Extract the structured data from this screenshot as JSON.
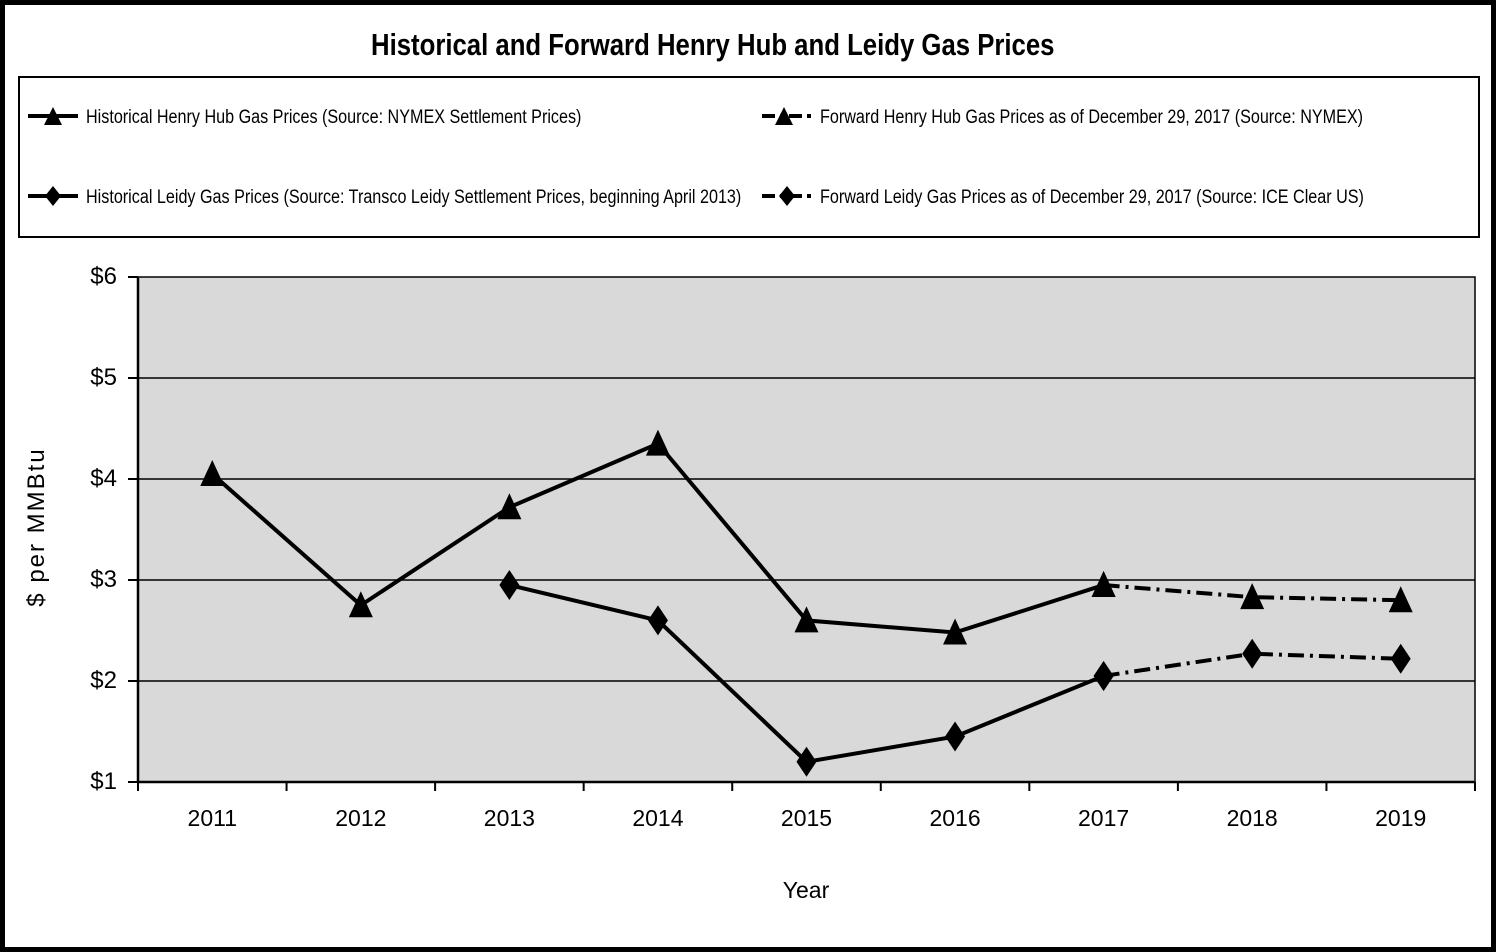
{
  "page": {
    "title": "Historical and Forward Henry Hub and Leidy Gas Prices"
  },
  "legend": {
    "items": [
      {
        "label": "Historical Henry Hub Gas Prices (Source: NYMEX Settlement Prices)",
        "marker": "triangle",
        "line": "solid"
      },
      {
        "label": "Forward Henry Hub Gas Prices as of December 29, 2017 (Source: NYMEX)",
        "marker": "triangle",
        "line": "dash-dot"
      },
      {
        "label": "Historical Leidy Gas Prices (Source: Transco Leidy Settlement Prices, beginning April 2013)",
        "marker": "diamond",
        "line": "solid"
      },
      {
        "label": "Forward Leidy Gas Prices as of December 29, 2017 (Source: ICE Clear US)",
        "marker": "diamond",
        "line": "dash-dot"
      }
    ]
  },
  "chart_data": {
    "type": "line",
    "title": "Historical and Forward Henry Hub and Leidy Gas Prices",
    "xlabel": "Year",
    "ylabel": "$ per MMBtu",
    "categories": [
      "2011",
      "2012",
      "2013",
      "2014",
      "2015",
      "2016",
      "2017",
      "2018",
      "2019"
    ],
    "ylim": [
      1,
      6
    ],
    "y_ticks": [
      "$1",
      "$2",
      "$3",
      "$4",
      "$5",
      "$6"
    ],
    "grid": "horizontal",
    "legend_position": "top",
    "plot_bg": "#D9D9D9",
    "line_color": "#000000",
    "series": [
      {
        "name": "Historical Henry Hub Gas Prices (Source: NYMEX Settlement Prices)",
        "marker": "triangle",
        "line": "solid",
        "values": [
          4.05,
          2.75,
          3.72,
          4.35,
          2.6,
          2.48,
          2.95,
          null,
          null
        ]
      },
      {
        "name": "Forward Henry Hub Gas Prices as of December 29, 2017 (Source: NYMEX)",
        "marker": "triangle",
        "line": "dash-dot",
        "values": [
          null,
          null,
          null,
          null,
          null,
          null,
          2.95,
          2.83,
          2.8
        ]
      },
      {
        "name": "Historical Leidy Gas Prices (Source: Transco Leidy Settlement Prices, beginning April 2013)",
        "marker": "diamond",
        "line": "solid",
        "values": [
          null,
          null,
          2.95,
          2.6,
          1.2,
          1.45,
          2.05,
          null,
          null
        ]
      },
      {
        "name": "Forward Leidy Gas Prices as of December 29, 2017 (Source: ICE Clear US)",
        "marker": "diamond",
        "line": "dash-dot",
        "values": [
          null,
          null,
          null,
          null,
          null,
          null,
          2.05,
          2.27,
          2.22
        ]
      }
    ]
  }
}
